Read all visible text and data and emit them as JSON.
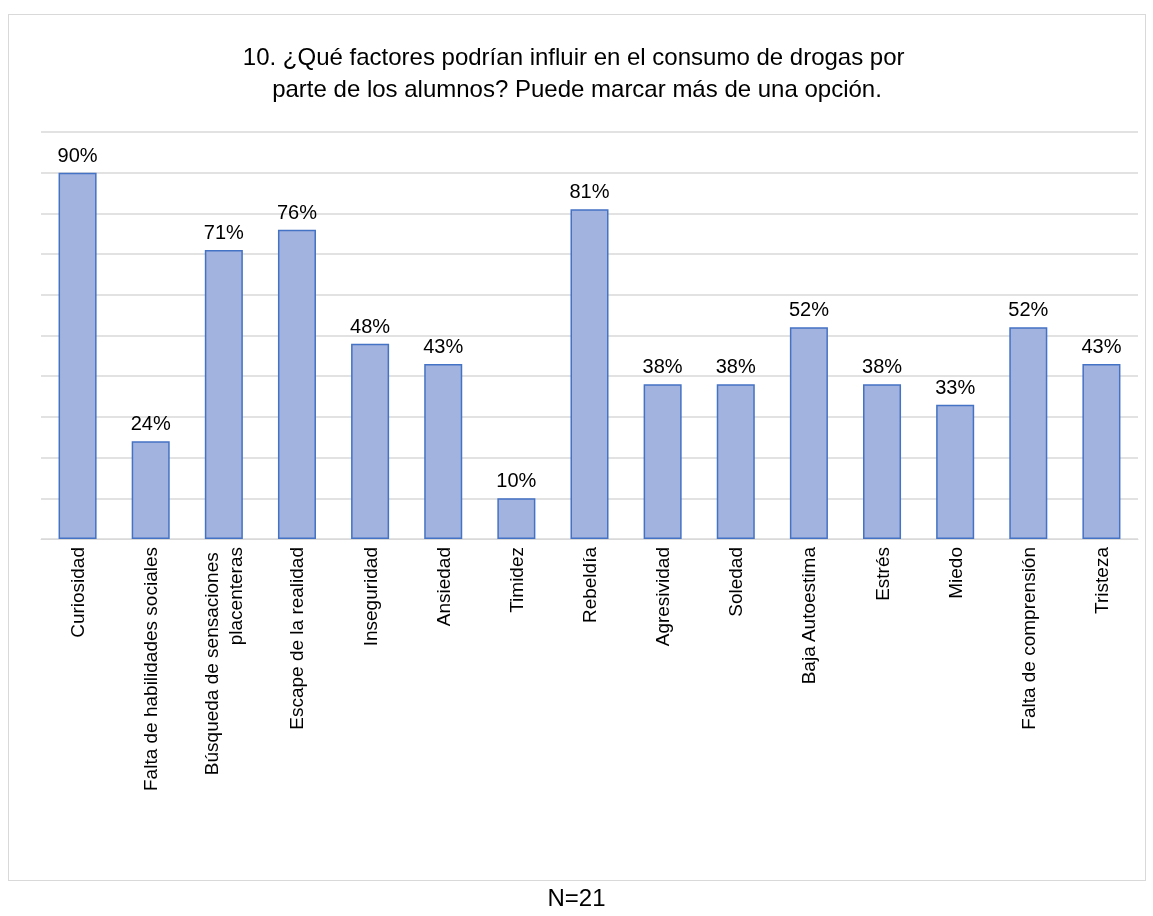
{
  "chart_data": {
    "type": "bar",
    "title": "10. ¿Qué factores podrían influir en el consumo de drogas por parte de los alumnos? Puede marcar más de una opción.",
    "categories": [
      "Curiosidad",
      "Falta de habilidades sociales",
      "Búsqueda de sensaciones placenteras",
      "Escape de la realidad",
      "Inseguridad",
      "Ansiedad",
      "Timidez",
      "Rebeldía",
      "Agresividad",
      "Soledad",
      "Baja Autoestima",
      "Estrés",
      "Miedo",
      "Falta de comprensión",
      "Tristeza"
    ],
    "values": [
      90,
      24,
      71,
      76,
      48,
      43,
      10,
      81,
      38,
      38,
      52,
      38,
      33,
      52,
      43
    ],
    "value_labels": [
      "90%",
      "24%",
      "71%",
      "76%",
      "48%",
      "43%",
      "10%",
      "81%",
      "38%",
      "38%",
      "52%",
      "38%",
      "33%",
      "52%",
      "43%"
    ],
    "color": "#a2b3df",
    "ylim": [
      0,
      100
    ],
    "yticks": [
      {
        "value": 0,
        "label": null
      },
      {
        "value": 10,
        "label": null
      },
      {
        "value": 20,
        "label": null
      },
      {
        "value": 30,
        "label": null
      },
      {
        "value": 40,
        "label": null
      },
      {
        "value": 50,
        "label": null
      },
      {
        "value": 60,
        "label": null
      },
      {
        "value": 70,
        "label": null
      },
      {
        "value": 80,
        "label": null
      },
      {
        "value": 90,
        "label": null
      },
      {
        "value": 100,
        "label": null
      }
    ],
    "tick_labels": "x",
    "grid": "y",
    "annotations": [
      "N=21"
    ]
  }
}
